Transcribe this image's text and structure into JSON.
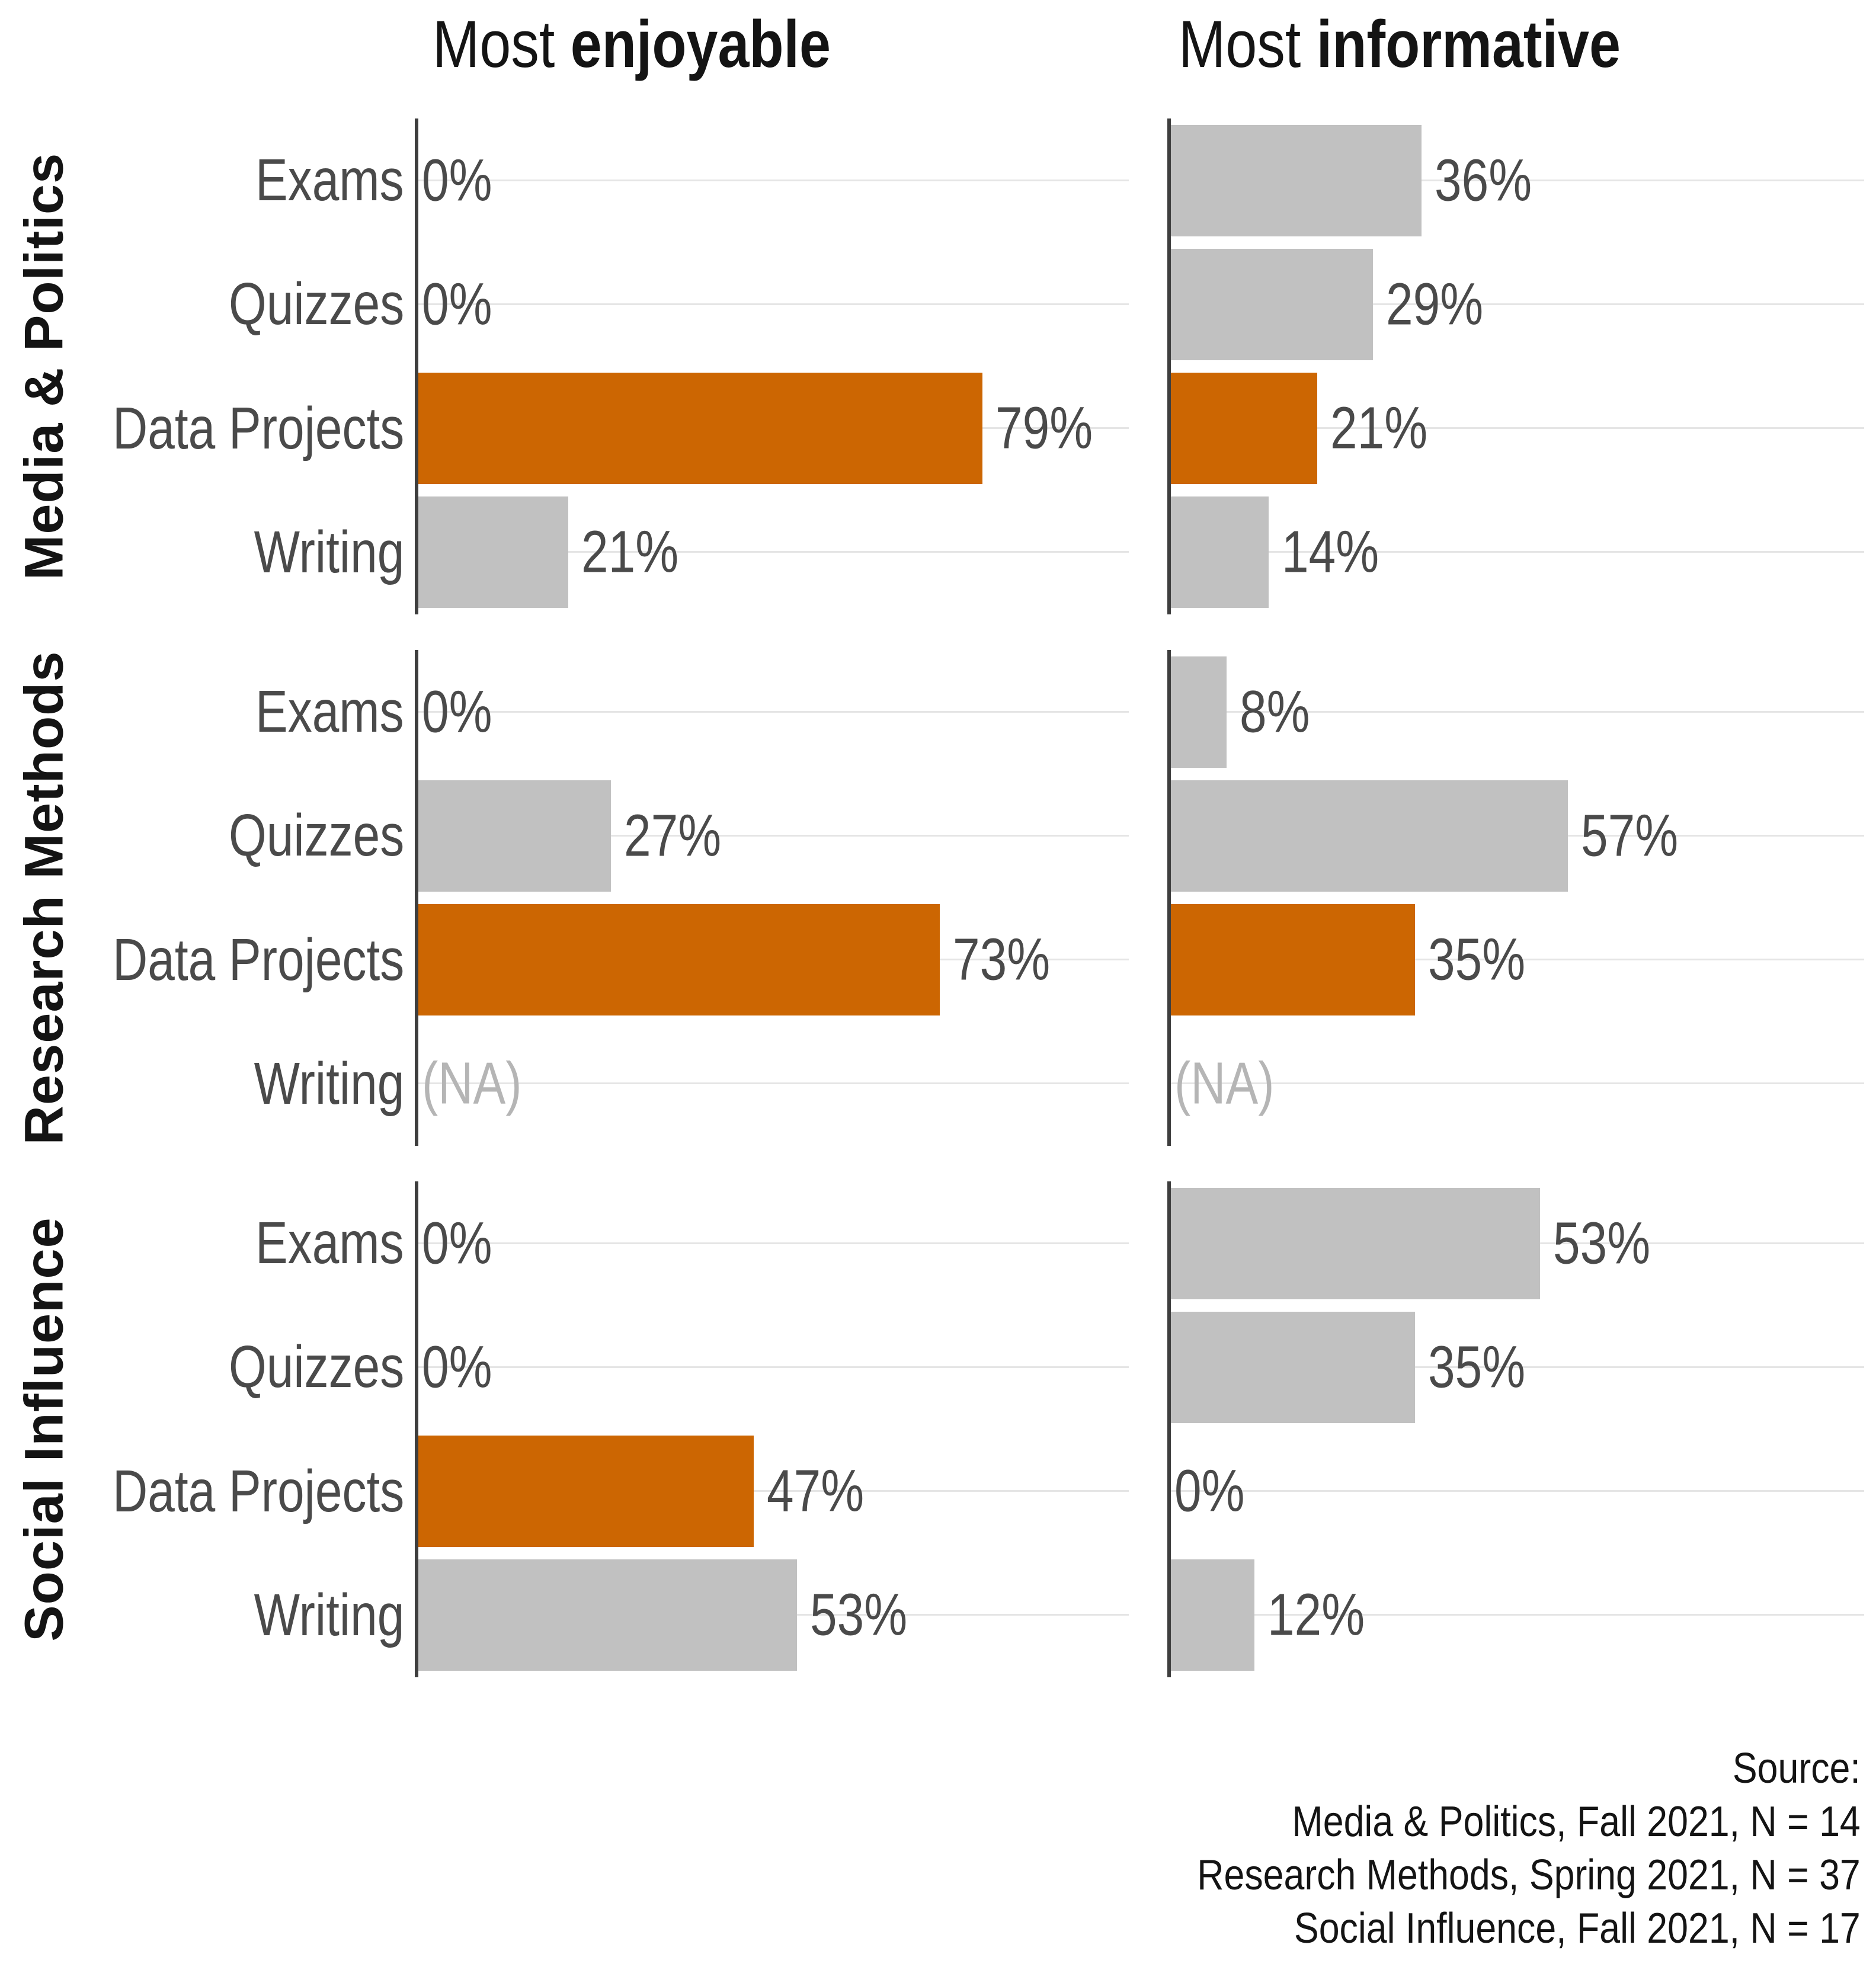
{
  "col_headers": [
    {
      "normal": "Most ",
      "bold": "enjoyable"
    },
    {
      "normal": "Most ",
      "bold": "informative"
    }
  ],
  "source": {
    "lines": [
      "Source:",
      "Media & Politics, Fall 2021, N = 14",
      "Research Methods, Spring 2021, N = 37",
      "Social Influence, Fall 2021, N = 17"
    ]
  },
  "colors": {
    "highlight": "#CC6602",
    "bar_gray": "#C1C1C1",
    "text": "#4A4A4A",
    "na": "#B5B5B5",
    "axis": "#3E3E3E",
    "grid": "#E5E5E5",
    "ink": "#141414"
  },
  "chart_data": {
    "type": "bar",
    "orientation": "horizontal",
    "categories": [
      "Exams",
      "Quizzes",
      "Data Projects",
      "Writing"
    ],
    "facet_rows": [
      "Media & Politics",
      "Research Methods",
      "Social Influence"
    ],
    "facet_cols": [
      "Most enjoyable",
      "Most informative"
    ],
    "xlim": [
      0,
      100
    ],
    "unit": "%",
    "highlight_category": "Data Projects",
    "na_label": "(NA)",
    "legend_position": "none",
    "grid": "one light horizontal gridline per category row",
    "series": [
      {
        "facet": "Media & Politics",
        "column": "Most enjoyable",
        "values": [
          0,
          0,
          79,
          21
        ],
        "display": [
          "0%",
          "0%",
          "79%",
          "21%"
        ]
      },
      {
        "facet": "Media & Politics",
        "column": "Most informative",
        "values": [
          36,
          29,
          21,
          14
        ],
        "display": [
          "36%",
          "29%",
          "21%",
          "14%"
        ]
      },
      {
        "facet": "Research Methods",
        "column": "Most enjoyable",
        "values": [
          0,
          27,
          73,
          null
        ],
        "display": [
          "0%",
          "27%",
          "73%",
          "(NA)"
        ]
      },
      {
        "facet": "Research Methods",
        "column": "Most informative",
        "values": [
          8,
          57,
          35,
          null
        ],
        "display": [
          "8%",
          "57%",
          "35%",
          "(NA)"
        ]
      },
      {
        "facet": "Social Influence",
        "column": "Most enjoyable",
        "values": [
          0,
          0,
          47,
          53
        ],
        "display": [
          "0%",
          "0%",
          "47%",
          "53%"
        ]
      },
      {
        "facet": "Social Influence",
        "column": "Most informative",
        "values": [
          53,
          35,
          0,
          12
        ],
        "display": [
          "53%",
          "35%",
          "0%",
          "12%"
        ]
      }
    ]
  }
}
